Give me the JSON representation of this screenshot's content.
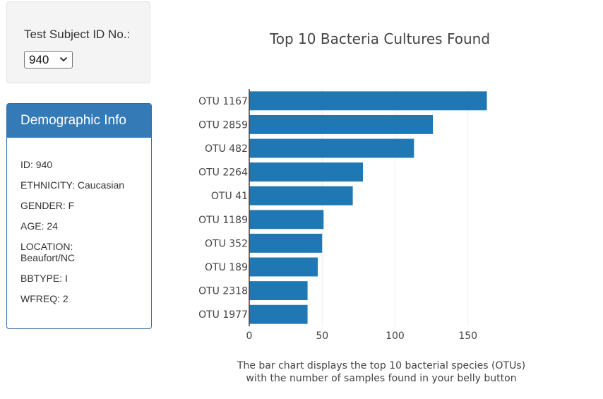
{
  "selector": {
    "label": "Test Subject ID No.:",
    "selected_value": "940"
  },
  "demographics": {
    "heading": "Demographic Info",
    "lines": [
      "ID: 940",
      "ETHNICITY: Caucasian",
      "GENDER: F",
      "AGE: 24",
      "LOCATION: Beaufort/NC",
      "BBTYPE: I",
      "WFREQ: 2"
    ]
  },
  "colors": {
    "bar": "#1f77b4",
    "panel_heading": "#337ab7"
  },
  "chart_data": {
    "type": "bar",
    "orientation": "horizontal",
    "title": "Top 10 Bacteria Cultures Found",
    "xlabel": "",
    "ylabel": "",
    "categories": [
      "OTU 1167",
      "OTU 2859",
      "OTU 482",
      "OTU 2264",
      "OTU 41",
      "OTU 1189",
      "OTU 352",
      "OTU 189",
      "OTU 2318",
      "OTU 1977"
    ],
    "values": [
      163,
      126,
      113,
      78,
      71,
      51,
      50,
      47,
      40,
      40
    ],
    "xlim": [
      0,
      170
    ],
    "xticks": [
      "0",
      "50",
      "100",
      "150"
    ],
    "grid": "vertical gridlines",
    "legend": "none"
  },
  "caption": {
    "line1": "The bar chart displays the top 10 bacterial species (OTUs)",
    "line2": "with the number of samples found in your belly button"
  }
}
